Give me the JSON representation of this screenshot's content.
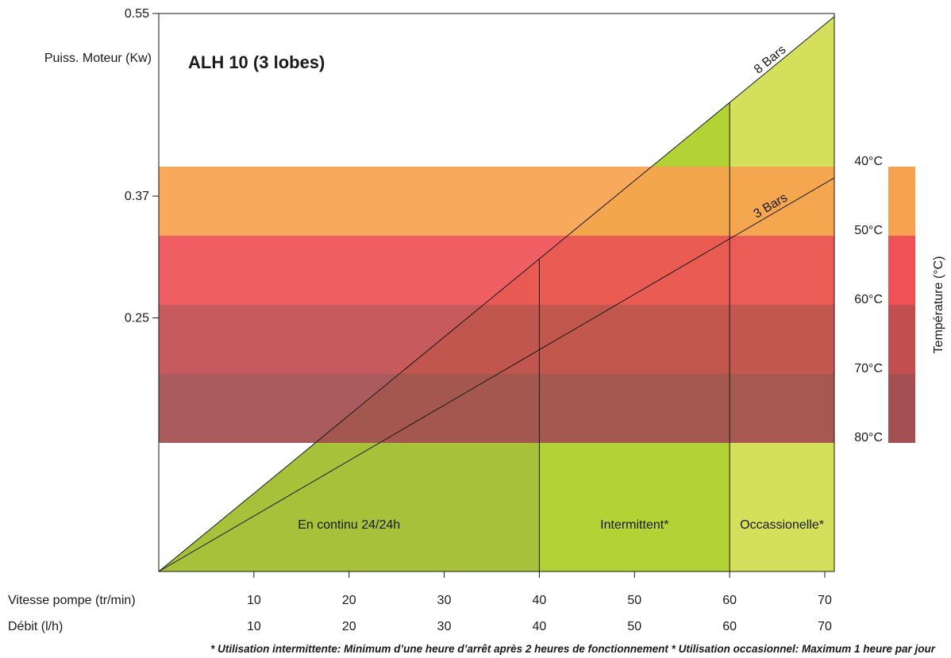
{
  "chart_data": {
    "type": "area",
    "title": "ALH 10 (3 lobes)",
    "ylabel": "Puiss. Moteur (Kw)",
    "ylim": [
      0,
      0.55
    ],
    "y_ticks": [
      {
        "value": 0.25,
        "label": "0.25"
      },
      {
        "value": 0.37,
        "label": "0.37"
      },
      {
        "value": 0.55,
        "label": "0.55"
      }
    ],
    "xlim": [
      0,
      71
    ],
    "x_ticks": [
      10,
      20,
      30,
      40,
      50,
      60,
      70
    ],
    "x_rows": [
      {
        "label": "Vitesse pompe (tr/min)",
        "ticks": [
          "10",
          "20",
          "30",
          "40",
          "50",
          "60",
          "70"
        ]
      },
      {
        "label": "Débit (l/h)",
        "ticks": [
          "10",
          "20",
          "30",
          "40",
          "50",
          "60",
          "70"
        ]
      }
    ],
    "series": [
      {
        "name": "8 Bars",
        "x": [
          0,
          71
        ],
        "y": [
          0,
          0.547
        ]
      },
      {
        "name": "3 Bars",
        "x": [
          0,
          71
        ],
        "y": [
          0,
          0.388
        ]
      }
    ],
    "zones": [
      {
        "label": "En continu 24/24h",
        "x_start": 0,
        "x_end": 40,
        "color": "#a7c13a"
      },
      {
        "label": "Intermittent*",
        "x_start": 40,
        "x_end": 60,
        "color": "#b3d235"
      },
      {
        "label": "Occassionelle*",
        "x_start": 60,
        "x_end": 71,
        "color": "#d4e05c"
      }
    ],
    "temperature_axis": {
      "label": "Température (°C)",
      "ticks": [
        "40°C",
        "50°C",
        "60°C",
        "70°C",
        "80°C"
      ],
      "bands": [
        {
          "from": "40°C",
          "to": "50°C",
          "color": "#f7a24f"
        },
        {
          "from": "50°C",
          "to": "60°C",
          "color": "#ee5257"
        },
        {
          "from": "60°C",
          "to": "70°C",
          "color": "#c24e50"
        },
        {
          "from": "70°C",
          "to": "80°C",
          "color": "#a44f51"
        }
      ]
    }
  },
  "footnote": "* Utilisation intermittente: Minimum d’une heure d’arrêt après 2 heures de fonctionnement  * Utilisation occasionnel: Maximum 1 heure par jour"
}
